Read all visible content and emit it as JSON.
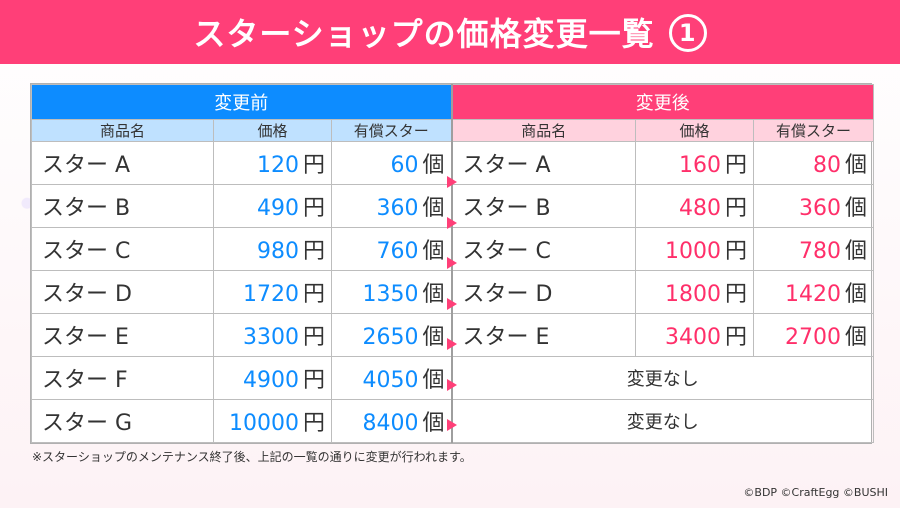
{
  "title": "スターショップの価格変更一覧",
  "title_number": "1",
  "header": {
    "before": "変更前",
    "after": "変更後",
    "col_item": "商品名",
    "col_price": "価格",
    "col_stars": "有償スター"
  },
  "units": {
    "yen": "円",
    "count": "個"
  },
  "rows": [
    {
      "name": "スター A",
      "before_price": "120",
      "before_stars": "60",
      "after_name": "スター A",
      "after_price": "160",
      "after_stars": "80"
    },
    {
      "name": "スター B",
      "before_price": "490",
      "before_stars": "360",
      "after_name": "スター B",
      "after_price": "480",
      "after_stars": "360"
    },
    {
      "name": "スター C",
      "before_price": "980",
      "before_stars": "760",
      "after_name": "スター C",
      "after_price": "1000",
      "after_stars": "780"
    },
    {
      "name": "スター D",
      "before_price": "1720",
      "before_stars": "1350",
      "after_name": "スター D",
      "after_price": "1800",
      "after_stars": "1420"
    },
    {
      "name": "スター E",
      "before_price": "3300",
      "before_stars": "2650",
      "after_name": "スター E",
      "after_price": "3400",
      "after_stars": "2700"
    },
    {
      "name": "スター F",
      "before_price": "4900",
      "before_stars": "4050",
      "no_change": "変更なし"
    },
    {
      "name": "スター G",
      "before_price": "10000",
      "before_stars": "8400",
      "no_change": "変更なし"
    }
  ],
  "note": "※スターショップのメンテナンス終了後、上記の一覧の通りに変更が行われます。",
  "credit": "©BDP ©CraftEgg ©BUSHI",
  "colors": {
    "pink": "#ff3f78",
    "blue": "#0d8cff"
  }
}
